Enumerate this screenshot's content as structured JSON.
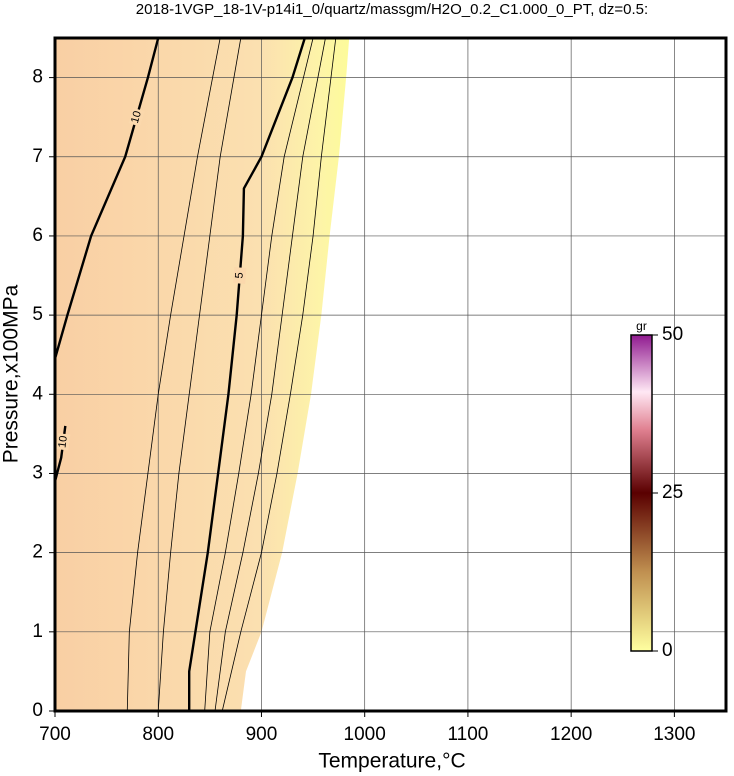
{
  "chart_data": {
    "type": "contour",
    "title": "2018-1VGP_18-1V-p14i1_0/quartz/massgm/H2O_0.2_C1.000_0_PT, dz=0.5:",
    "x_label": "Temperature,°C",
    "y_label": "Pressure,x100MPa",
    "xlim": [
      700,
      1350
    ],
    "ylim": [
      0,
      8.5
    ],
    "xticks": [
      700,
      800,
      900,
      1000,
      1100,
      1200,
      1300
    ],
    "yticks": [
      0,
      1,
      2,
      3,
      4,
      5,
      6,
      7,
      8
    ],
    "grid": true,
    "data_edge": {
      "x": [
        880,
        885,
        900,
        920,
        935,
        948,
        958,
        966,
        975,
        982,
        985
      ],
      "y": [
        0,
        0.5,
        1,
        2,
        3,
        4,
        5,
        6,
        7,
        8,
        8.5
      ]
    },
    "series": [
      {
        "level": 10,
        "x": [
          700,
          712,
          735,
          768,
          790,
          800
        ],
        "y": [
          4.45,
          5,
          6,
          7,
          8,
          8.5
        ]
      },
      {
        "level": 10,
        "x": [
          700,
          706,
          710
        ],
        "y": [
          2.9,
          3.2,
          3.6
        ]
      },
      {
        "level": 5,
        "x": [
          830,
          830,
          836,
          848,
          858,
          868,
          876,
          882,
          883,
          900,
          930,
          942
        ],
        "y": [
          0,
          0.5,
          1,
          2,
          3,
          4,
          5,
          6,
          6.6,
          7,
          8,
          8.5
        ]
      },
      {
        "x": [
          770,
          772,
          780,
          790,
          800,
          812,
          825,
          838,
          860
        ],
        "y": [
          0,
          1,
          2,
          3,
          4,
          5,
          6,
          7,
          8.5
        ]
      },
      {
        "x": [
          800,
          805,
          812,
          820,
          830,
          840,
          850,
          860,
          880
        ],
        "y": [
          0,
          1,
          2,
          3,
          4,
          5,
          6,
          7,
          8.5
        ]
      },
      {
        "x": [
          845,
          850,
          865,
          878,
          890,
          900,
          910,
          922,
          950
        ],
        "y": [
          0,
          1,
          2,
          3,
          4,
          5,
          6,
          7,
          8.5
        ]
      },
      {
        "x": [
          855,
          865,
          882,
          897,
          910,
          920,
          930,
          940,
          962
        ],
        "y": [
          0,
          1,
          2,
          3,
          4,
          5,
          6,
          7,
          8.5
        ]
      },
      {
        "x": [
          862,
          880,
          900,
          915,
          928,
          940,
          950,
          958,
          972
        ],
        "y": [
          0,
          1,
          2,
          3,
          4,
          5,
          6,
          7,
          8.5
        ]
      }
    ],
    "colorbar": {
      "label": "gr",
      "lim": [
        0,
        50
      ],
      "ticks": [
        0,
        25,
        50
      ]
    }
  }
}
